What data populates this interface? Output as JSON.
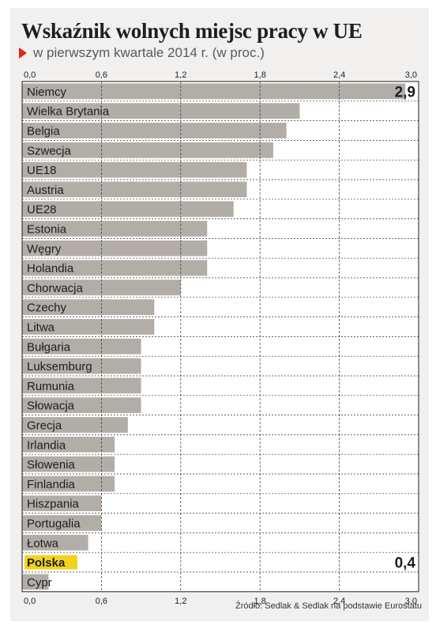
{
  "header": {
    "title": "Wskaźnik wolnych miejsc pracy w UE",
    "subtitle": "w pierwszym kwartale 2014 r. (w proc.)"
  },
  "source": "Źródło: Sedlak & Sedlak na podstawie Eurostatu",
  "colors": {
    "bar": "#b3ada7",
    "highlight": "#f2d21e",
    "accent_arrow": "#e2231a",
    "grid": "#333333",
    "background": "#f1f0ef"
  },
  "chart_data": {
    "type": "bar",
    "orientation": "horizontal",
    "categories": [
      "Niemcy",
      "Wielka Brytania",
      "Belgia",
      "Szwecja",
      "UE18",
      "Austria",
      "UE28",
      "Estonia",
      "Węgry",
      "Holandia",
      "Chorwacja",
      "Czechy",
      "Litwa",
      "Bułgaria",
      "Luksemburg",
      "Rumunia",
      "Słowacja",
      "Grecja",
      "Irlandia",
      "Słowenia",
      "Finlandia",
      "Hiszpania",
      "Portugalia",
      "Łotwa",
      "Polska",
      "Cypr"
    ],
    "values": [
      2.9,
      2.1,
      2.0,
      1.9,
      1.7,
      1.7,
      1.6,
      1.4,
      1.4,
      1.4,
      1.2,
      1.0,
      1.0,
      0.9,
      0.9,
      0.9,
      0.9,
      0.8,
      0.7,
      0.7,
      0.7,
      0.6,
      0.6,
      0.5,
      0.4,
      0.2
    ],
    "highlight": "Polska",
    "data_labels": [
      {
        "category": "Niemcy",
        "text": "2,9"
      },
      {
        "category": "Polska",
        "text": "0,4"
      }
    ],
    "xlim": [
      0,
      3.0
    ],
    "xticks": [
      0,
      0.6,
      1.2,
      1.8,
      2.4,
      3.0
    ],
    "xtick_labels": [
      "0,0",
      "0,6",
      "1,2",
      "1,8",
      "2,4",
      "3,0"
    ],
    "axis_labels_position": "top-and-bottom",
    "grid": true
  }
}
